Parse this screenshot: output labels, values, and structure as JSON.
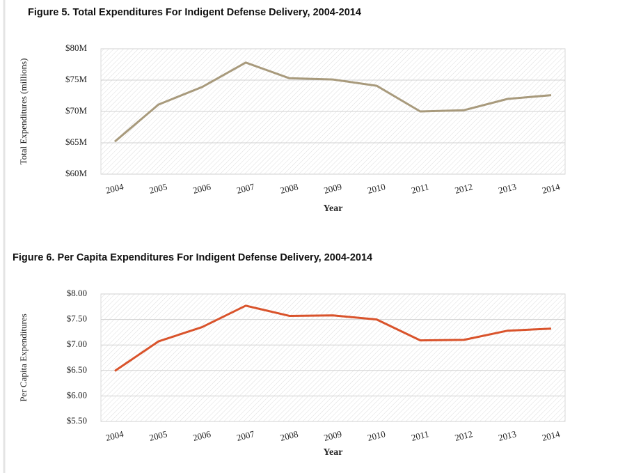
{
  "chart_data": [
    {
      "type": "line",
      "title": "Figure 5. Total Expenditures For Indigent Defense Delivery, 2004-2014",
      "x_label": "Year",
      "y_label": "Total Expenditures (millions)",
      "categories": [
        "2004",
        "2005",
        "2006",
        "2007",
        "2008",
        "2009",
        "2010",
        "2011",
        "2012",
        "2013",
        "2014"
      ],
      "series": [
        {
          "name": "Total Expenditures",
          "color": "#a89a7c",
          "values": [
            65.2,
            71.1,
            73.9,
            77.8,
            75.3,
            75.1,
            74.1,
            70.0,
            70.2,
            72.0,
            72.6
          ]
        }
      ],
      "ylim": [
        60,
        80
      ],
      "yticks": [
        {
          "value": 60,
          "label": "$60M"
        },
        {
          "value": 65,
          "label": "$65M"
        },
        {
          "value": 70,
          "label": "$70M"
        },
        {
          "value": 75,
          "label": "$75M"
        },
        {
          "value": 80,
          "label": "$80M"
        }
      ]
    },
    {
      "type": "line",
      "title": "Figure 6. Per Capita Expenditures For Indigent Defense Delivery, 2004-2014",
      "x_label": "Year",
      "y_label": "Per Capita Expenditures",
      "categories": [
        "2004",
        "2005",
        "2006",
        "2007",
        "2008",
        "2009",
        "2010",
        "2011",
        "2012",
        "2013",
        "2014"
      ],
      "series": [
        {
          "name": "Per Capita Expenditures",
          "color": "#d9532b",
          "values": [
            6.49,
            7.07,
            7.35,
            7.77,
            7.57,
            7.58,
            7.5,
            7.09,
            7.1,
            7.28,
            7.32
          ]
        }
      ],
      "ylim": [
        5.5,
        8
      ],
      "yticks": [
        {
          "value": 5.5,
          "label": "$5.50"
        },
        {
          "value": 6,
          "label": "$6.00"
        },
        {
          "value": 6.5,
          "label": "$6.50"
        },
        {
          "value": 7,
          "label": "$7.00"
        },
        {
          "value": 7.5,
          "label": "$7.50"
        },
        {
          "value": 8,
          "label": "$8.00"
        }
      ]
    }
  ]
}
